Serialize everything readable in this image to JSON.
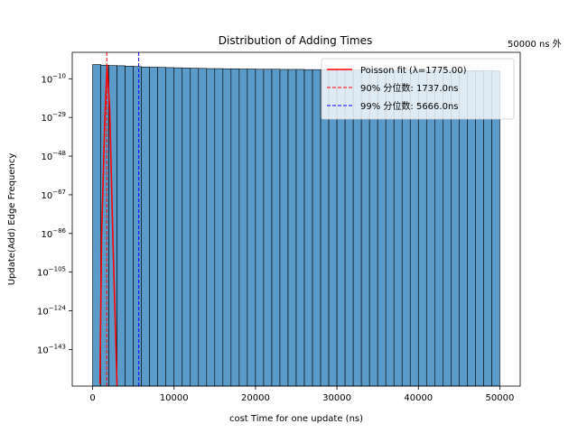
{
  "chart_data": {
    "type": "bar",
    "title": "Distribution of Adding Times",
    "corner_note": "50000 ns 外",
    "xlabel": "cost Time for one update (ns)",
    "ylabel": "Update(Add) Edge Frequency",
    "xlim": [
      -2500,
      52500
    ],
    "ylog_exp_range": [
      -161,
      3
    ],
    "x_ticks": [
      {
        "value": 0,
        "label": "0"
      },
      {
        "value": 10000,
        "label": "10000"
      },
      {
        "value": 20000,
        "label": "20000"
      },
      {
        "value": 30000,
        "label": "30000"
      },
      {
        "value": 40000,
        "label": "40000"
      },
      {
        "value": 50000,
        "label": "50000"
      }
    ],
    "y_ticks": [
      {
        "exp": -10,
        "base": "10",
        "sup": "−10"
      },
      {
        "exp": -29,
        "base": "10",
        "sup": "−29"
      },
      {
        "exp": -48,
        "base": "10",
        "sup": "−48"
      },
      {
        "exp": -67,
        "base": "10",
        "sup": "−67"
      },
      {
        "exp": -86,
        "base": "10",
        "sup": "−86"
      },
      {
        "exp": -105,
        "base": "10",
        "sup": "−105"
      },
      {
        "exp": -124,
        "base": "10",
        "sup": "−124"
      },
      {
        "exp": -143,
        "base": "10",
        "sup": "−143"
      }
    ],
    "bins": {
      "start": 0,
      "width": 1000,
      "log10_heights": [
        -3.0,
        -3.3,
        -3.5,
        -3.6,
        -3.8,
        -4.0,
        -4.2,
        -4.3,
        -4.4,
        -4.5,
        -4.6,
        -4.7,
        -4.8,
        -4.9,
        -5.0,
        -5.0,
        -5.1,
        -5.1,
        -5.2,
        -5.2,
        -5.3,
        -5.3,
        -5.3,
        -5.4,
        -5.4,
        -5.4,
        -5.5,
        -5.5,
        -5.5,
        -5.6,
        -5.6,
        -5.6,
        -5.7,
        -5.7,
        -5.7,
        -5.7,
        -5.8,
        -5.8,
        -5.8,
        -5.8,
        -5.9,
        -5.9,
        -5.9,
        -5.9,
        -6.0,
        -6.0,
        -6.0,
        -6.0,
        -6.1,
        -6.1
      ],
      "color": "#5b9bc9"
    },
    "poisson_fit": {
      "name": "Poisson fit (λ=1775.00)",
      "color": "#ff0000",
      "points": [
        [
          900,
          -160
        ],
        [
          1100,
          -88
        ],
        [
          1500,
          -30
        ],
        [
          1775,
          -3.3
        ],
        [
          2100,
          -25
        ],
        [
          2500,
          -90
        ],
        [
          3000,
          -161
        ]
      ]
    },
    "percentile_lines": [
      {
        "name": "90% 分位数: 1737.0ns",
        "x": 1737,
        "color": "#ff0000"
      },
      {
        "name": "99% 分位数: 5666.0ns",
        "x": 5666,
        "color": "#0000ff"
      }
    ],
    "legend_position": "upper right"
  }
}
